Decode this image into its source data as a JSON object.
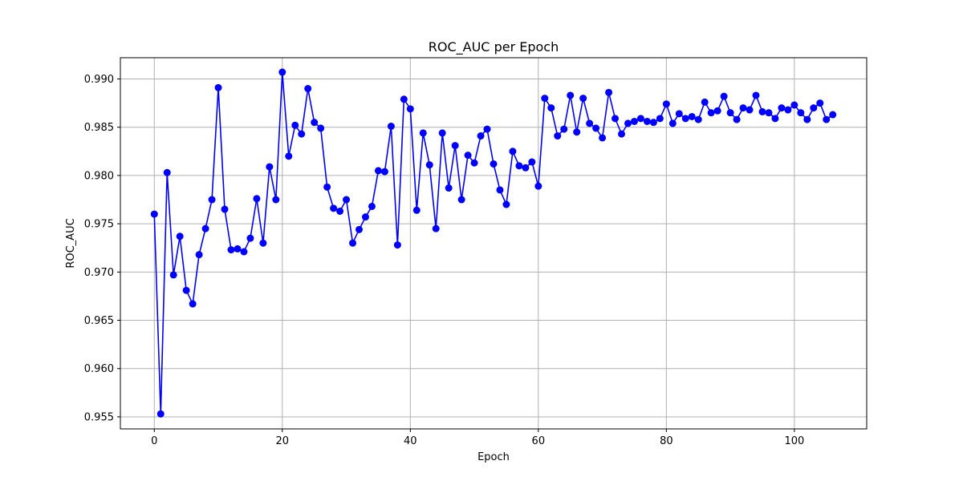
{
  "chart_data": {
    "type": "line",
    "title": "ROC_AUC per Epoch",
    "xlabel": "Epoch",
    "ylabel": "ROC_AUC",
    "xlim": [
      -5.3,
      111.3
    ],
    "ylim": [
      0.95375,
      0.9922
    ],
    "xticks": [
      0,
      20,
      40,
      60,
      80,
      100
    ],
    "yticks": [
      0.955,
      0.96,
      0.965,
      0.97,
      0.975,
      0.98,
      0.985,
      0.99
    ],
    "ytick_labels": [
      "0.955",
      "0.960",
      "0.965",
      "0.970",
      "0.975",
      "0.980",
      "0.985",
      "0.990"
    ],
    "xtick_labels": [
      "0",
      "20",
      "40",
      "60",
      "80",
      "100"
    ],
    "grid": true,
    "series": [
      {
        "color": "#0000ff",
        "marker": "circle",
        "x": [
          0,
          1,
          2,
          3,
          4,
          5,
          6,
          7,
          8,
          9,
          10,
          11,
          12,
          13,
          14,
          15,
          16,
          17,
          18,
          19,
          20,
          21,
          22,
          23,
          24,
          25,
          26,
          27,
          28,
          29,
          30,
          31,
          32,
          33,
          34,
          35,
          36,
          37,
          38,
          39,
          40,
          41,
          42,
          43,
          44,
          45,
          46,
          47,
          48,
          49,
          50,
          51,
          52,
          53,
          54,
          55,
          56,
          57,
          58,
          59,
          60,
          61,
          62,
          63,
          64,
          65,
          66,
          67,
          68,
          69,
          70,
          71,
          72,
          73,
          74,
          75,
          76,
          77,
          78,
          79,
          80,
          81,
          82,
          83,
          84,
          85,
          86,
          87,
          88,
          89,
          90,
          91,
          92,
          93,
          94,
          95,
          96,
          97,
          98,
          99,
          100,
          101,
          102,
          103,
          104,
          105,
          106
        ],
        "values": [
          0.976,
          0.9553,
          0.9803,
          0.9697,
          0.9737,
          0.9681,
          0.9667,
          0.9718,
          0.9745,
          0.9775,
          0.9891,
          0.9765,
          0.9723,
          0.9724,
          0.9721,
          0.9735,
          0.9776,
          0.973,
          0.9809,
          0.9775,
          0.9907,
          0.982,
          0.9852,
          0.9843,
          0.989,
          0.9855,
          0.9849,
          0.9788,
          0.9766,
          0.9763,
          0.9775,
          0.973,
          0.9744,
          0.9757,
          0.9768,
          0.9805,
          0.9804,
          0.9851,
          0.9728,
          0.9879,
          0.9869,
          0.9764,
          0.9844,
          0.9811,
          0.9745,
          0.9844,
          0.9787,
          0.9831,
          0.9775,
          0.9821,
          0.9813,
          0.9841,
          0.9848,
          0.9812,
          0.9785,
          0.977,
          0.9825,
          0.981,
          0.9808,
          0.9814,
          0.9789,
          0.988,
          0.987,
          0.9841,
          0.9848,
          0.9883,
          0.9845,
          0.988,
          0.9854,
          0.9849,
          0.9839,
          0.9886,
          0.9859,
          0.9843,
          0.9854,
          0.9856,
          0.9859,
          0.9856,
          0.9855,
          0.9859,
          0.9874,
          0.9854,
          0.9864,
          0.9859,
          0.9861,
          0.9858,
          0.9876,
          0.9865,
          0.9867,
          0.9882,
          0.9865,
          0.9858,
          0.987,
          0.9868,
          0.9883,
          0.9866,
          0.9865,
          0.9859,
          0.987,
          0.9868,
          0.9873,
          0.9865,
          0.9858,
          0.987,
          0.9875,
          0.9858,
          0.9863
        ]
      }
    ]
  }
}
